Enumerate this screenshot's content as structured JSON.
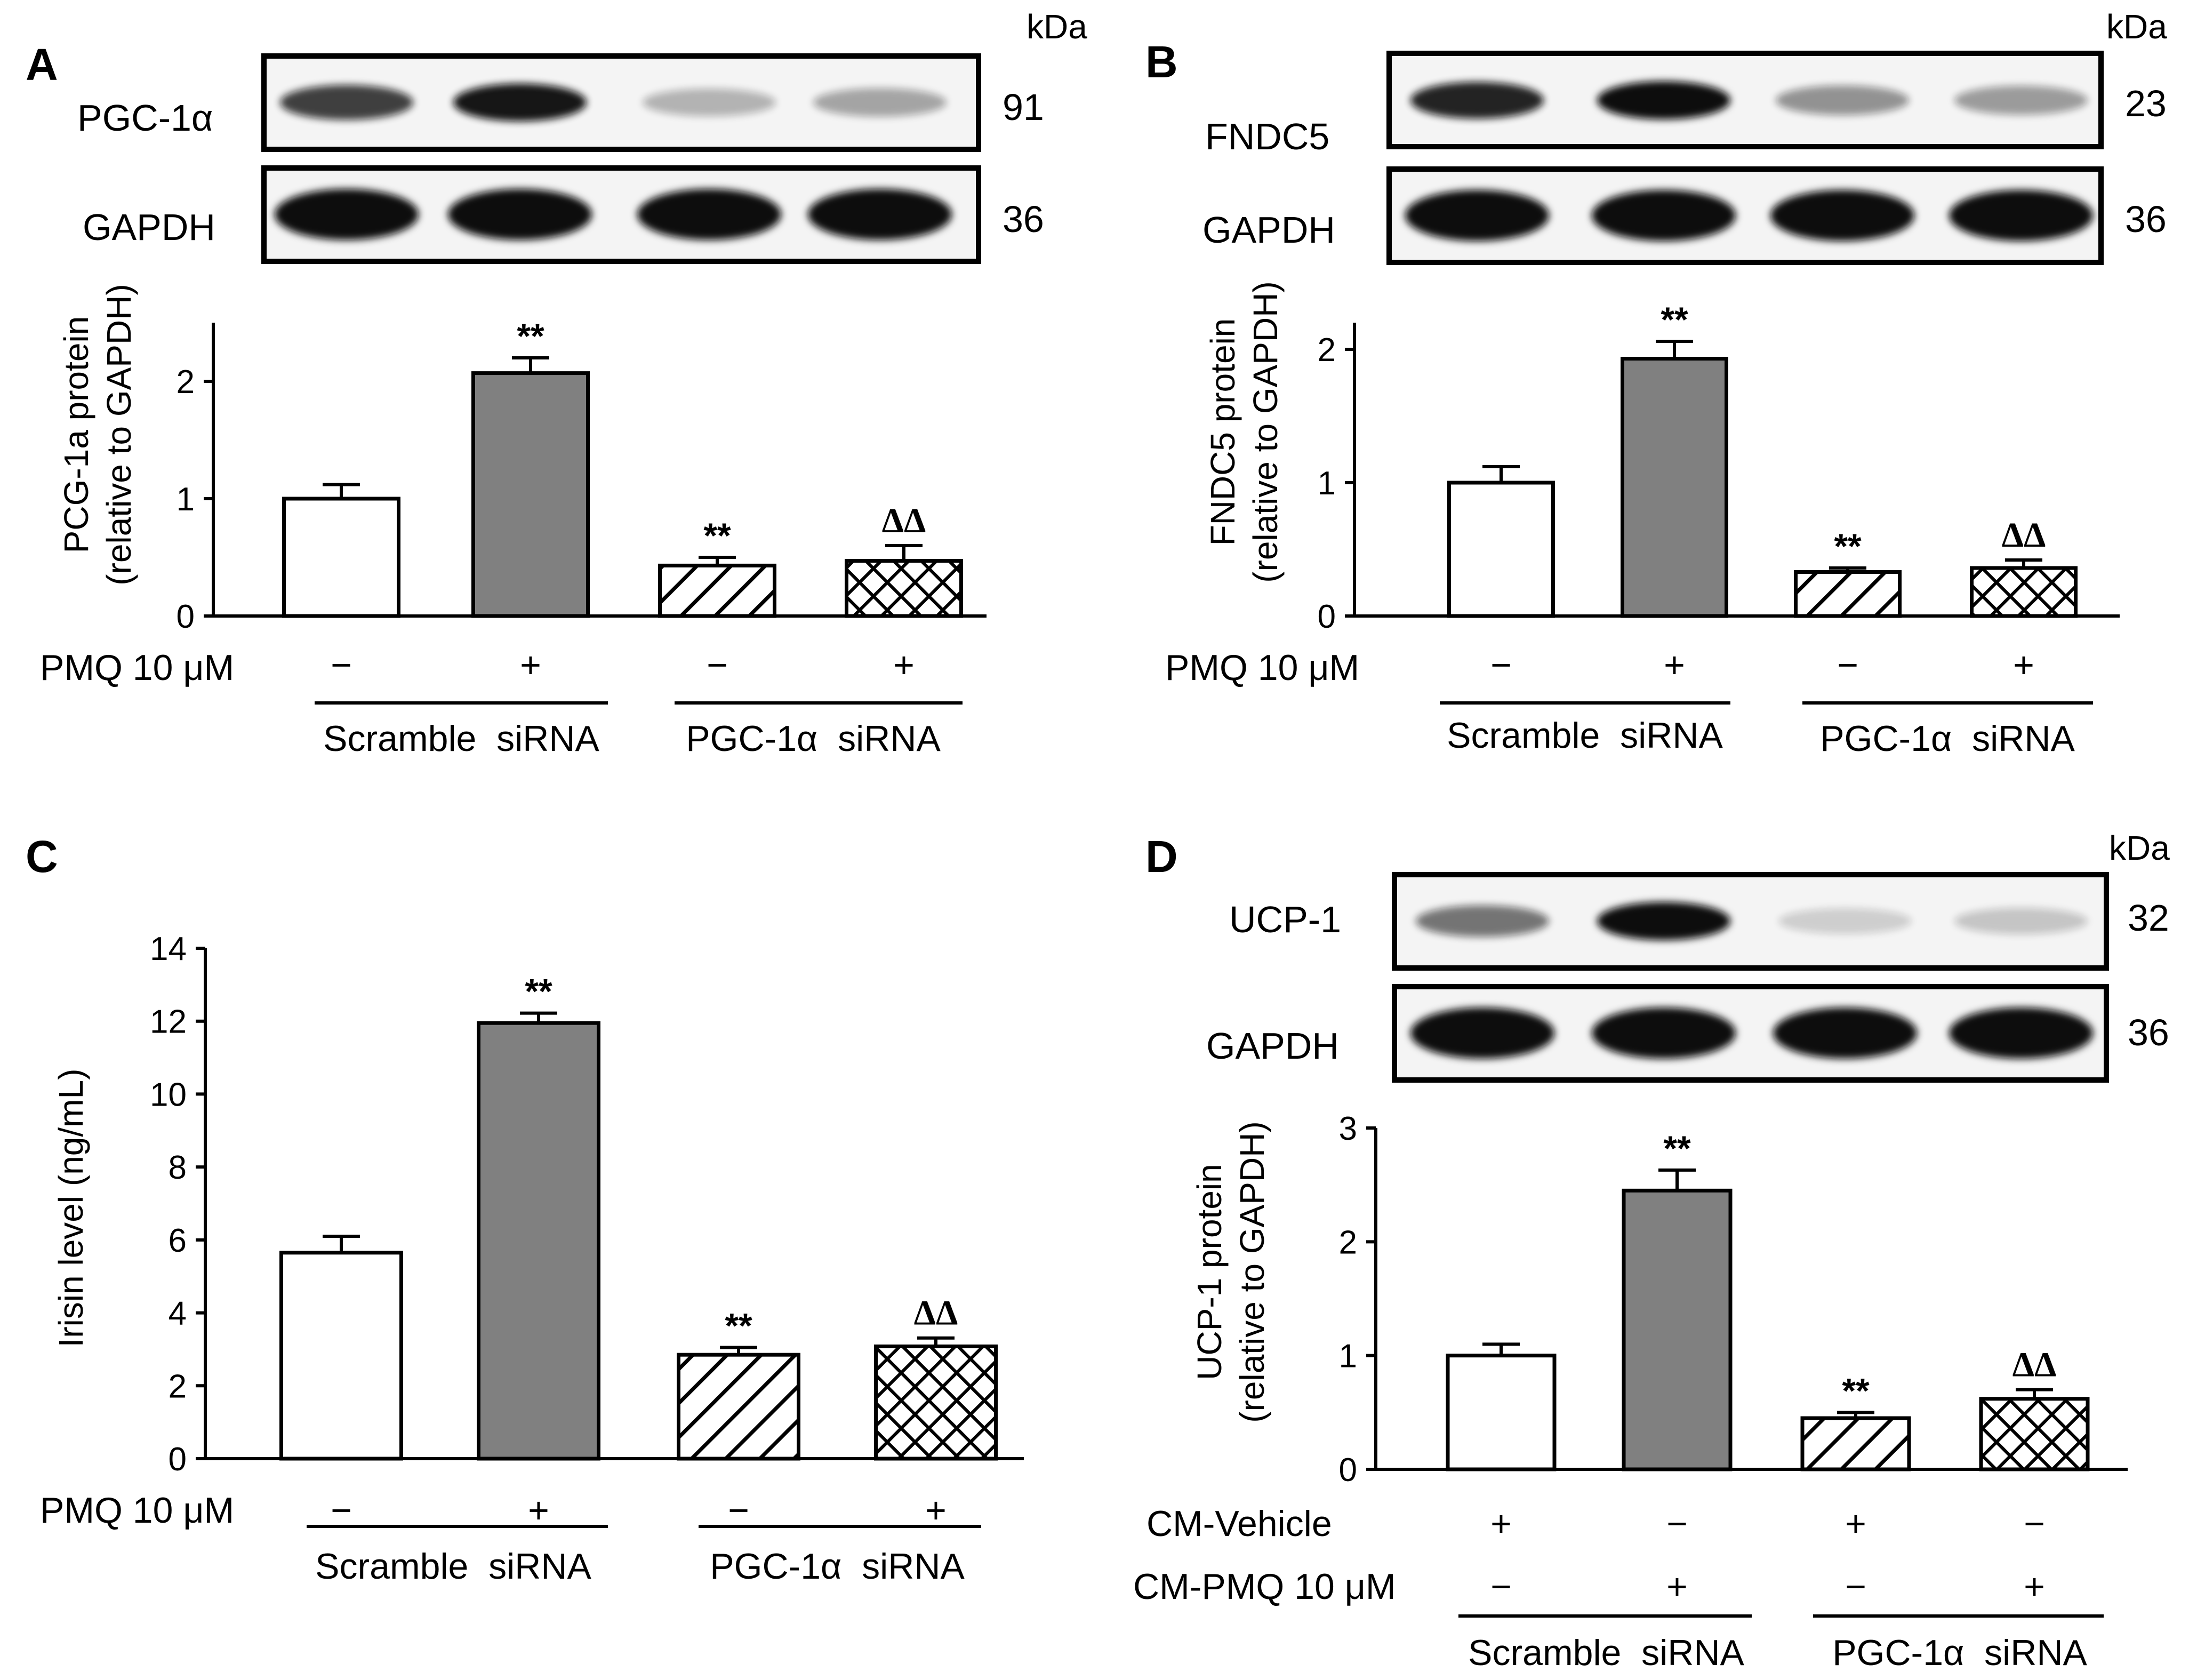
{
  "chart_data": [
    {
      "panel": "A",
      "type": "bar",
      "blots": [
        {
          "label": "PGC-1α",
          "kda": "91",
          "intensity": [
            0.78,
            0.96,
            0.28,
            0.34
          ]
        },
        {
          "label": "GAPDH",
          "kda": "36",
          "intensity": [
            1.0,
            1.0,
            1.0,
            1.0
          ]
        }
      ],
      "kda_header": "kDa",
      "ylabel_line1": "PCG-1a protein",
      "ylabel_line2": "(relative to GAPDH)",
      "ylim": [
        0,
        2.5
      ],
      "yticks": [
        "0",
        "1",
        "2"
      ],
      "values": [
        1.0,
        2.07,
        0.43,
        0.47
      ],
      "errors": [
        0.12,
        0.13,
        0.07,
        0.13
      ],
      "fills": [
        "white",
        "gray",
        "diag",
        "cross"
      ],
      "significance": [
        "",
        "**",
        "**",
        "ΔΔ"
      ],
      "conditions": [
        {
          "label": "PMQ 10 μM",
          "signs": [
            "−",
            "+",
            "−",
            "+"
          ]
        }
      ],
      "groups": [
        "Scramble  siRNA",
        "PGC-1α  siRNA"
      ]
    },
    {
      "panel": "B",
      "type": "bar",
      "blots": [
        {
          "label": "FNDC5",
          "kda": "23",
          "intensity": [
            0.9,
            1.0,
            0.42,
            0.38
          ]
        },
        {
          "label": "GAPDH",
          "kda": "36",
          "intensity": [
            1.0,
            1.0,
            1.0,
            1.0
          ]
        }
      ],
      "kda_header": "kDa",
      "ylabel_line1": "FNDC5 protein",
      "ylabel_line2": "(relative to GAPDH)",
      "ylim": [
        0,
        2.2
      ],
      "yticks": [
        "0",
        "1",
        "2"
      ],
      "values": [
        1.0,
        1.93,
        0.33,
        0.36
      ],
      "errors": [
        0.12,
        0.13,
        0.03,
        0.06
      ],
      "fills": [
        "white",
        "gray",
        "diag",
        "cross"
      ],
      "significance": [
        "",
        "**",
        "**",
        "ΔΔ"
      ],
      "conditions": [
        {
          "label": "PMQ 10 μM",
          "signs": [
            "−",
            "+",
            "−",
            "+"
          ]
        }
      ],
      "groups": [
        "Scramble  siRNA",
        "PGC-1α  siRNA"
      ]
    },
    {
      "panel": "C",
      "type": "bar",
      "blots": [],
      "ylabel_line1": "Irisin level (ng/mL)",
      "ylabel_line2": "",
      "ylim": [
        0,
        14
      ],
      "yticks": [
        "0",
        "2",
        "4",
        "6",
        "8",
        "10",
        "12",
        "14"
      ],
      "values": [
        5.65,
        11.95,
        2.85,
        3.08
      ],
      "errors": [
        0.45,
        0.27,
        0.2,
        0.23
      ],
      "fills": [
        "white",
        "gray",
        "diag",
        "cross"
      ],
      "significance": [
        "",
        "**",
        "**",
        "ΔΔ"
      ],
      "conditions": [
        {
          "label": "PMQ 10 μM",
          "signs": [
            "−",
            "+",
            "−",
            "+"
          ]
        }
      ],
      "groups": [
        "Scramble  siRNA",
        "PGC-1α  siRNA"
      ]
    },
    {
      "panel": "D",
      "type": "bar",
      "blots": [
        {
          "label": "UCP-1",
          "kda": "32",
          "intensity": [
            0.55,
            1.0,
            0.16,
            0.2
          ]
        },
        {
          "label": "GAPDH",
          "kda": "36",
          "intensity": [
            1.0,
            1.0,
            1.0,
            1.0
          ]
        }
      ],
      "kda_header": "kDa",
      "ylabel_line1": "UCP-1 protein",
      "ylabel_line2": "(relative to GAPDH)",
      "ylim": [
        0,
        3
      ],
      "yticks": [
        "0",
        "1",
        "2",
        "3"
      ],
      "values": [
        1.0,
        2.45,
        0.45,
        0.62
      ],
      "errors": [
        0.1,
        0.18,
        0.05,
        0.08
      ],
      "fills": [
        "white",
        "gray",
        "diag",
        "cross"
      ],
      "significance": [
        "",
        "**",
        "**",
        "ΔΔ"
      ],
      "conditions": [
        {
          "label": "CM-Vehicle",
          "signs": [
            "+",
            "−",
            "+",
            "−"
          ]
        },
        {
          "label": "CM-PMQ 10 μM",
          "signs": [
            "−",
            "+",
            "−",
            "+"
          ]
        }
      ],
      "groups": [
        "Scramble  siRNA",
        "PGC-1α  siRNA"
      ]
    }
  ],
  "colors": {
    "bar_gray": "#808080",
    "blot_bg": "#f4f4f4",
    "band_dark": "#0b0b0b"
  }
}
